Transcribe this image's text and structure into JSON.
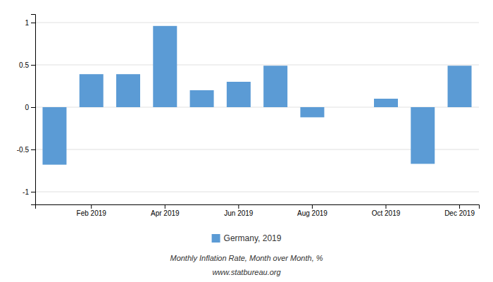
{
  "chart_data": {
    "type": "bar",
    "categories": [
      null,
      "Feb 2019",
      null,
      "Apr 2019",
      null,
      "Jun 2019",
      null,
      "Aug 2019",
      null,
      "Oct 2019",
      null,
      "Dec 2019"
    ],
    "series": [
      {
        "name": "Germany, 2019",
        "color": "#5b9bd5",
        "values": [
          -0.68,
          0.39,
          0.39,
          0.96,
          0.2,
          0.3,
          0.49,
          -0.12,
          0.0,
          0.1,
          -0.67,
          0.49
        ]
      }
    ],
    "ylim": [
      -1.15,
      1.1
    ],
    "yticks": [
      -1,
      -0.5,
      0,
      0.5,
      1
    ],
    "grid": true,
    "legend": "bottom",
    "annotations": [
      "Monthly Inflation Rate, Month over Month, %",
      "www.statbureau.org"
    ]
  }
}
